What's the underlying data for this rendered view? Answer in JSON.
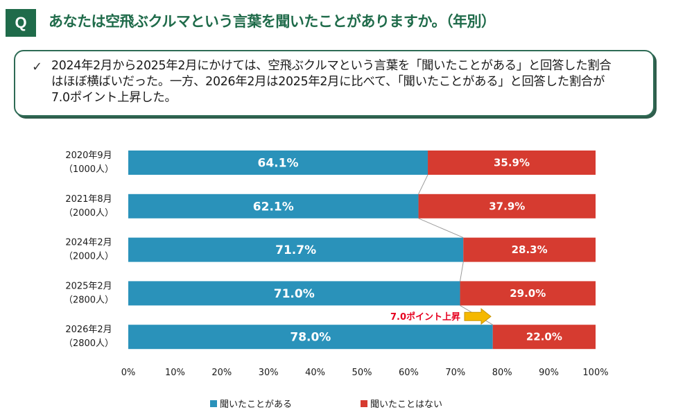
{
  "header": {
    "badge": "Q",
    "title": "あなたは空飛ぶクルマという言葉を聞いたことがありますか。（年別）"
  },
  "summary": {
    "check_icon": "check-icon",
    "line1": "2024年2月から2025年2月にかけては、空飛ぶクルマという言葉を「聞いたことがある」と回答した割合",
    "line2": "はほぼ横ばいだった。一方、2026年2月は2025年2月に比べて、「聞いたことがある」と回答した割合が",
    "line3": "7.0ポイント上昇した。"
  },
  "chart_data": {
    "type": "bar",
    "orientation": "horizontal",
    "stacked": true,
    "percent": true,
    "categories": [
      {
        "line1": "2020年9月",
        "line2": "（1000人）"
      },
      {
        "line1": "2021年8月",
        "line2": "（2000人）"
      },
      {
        "line1": "2024年2月",
        "line2": "（2000人）"
      },
      {
        "line1": "2025年2月",
        "line2": "（2800人）"
      },
      {
        "line1": "2026年2月",
        "line2": "（2800人）"
      }
    ],
    "series": [
      {
        "name": "聞いたことがある",
        "color": "#2a92ba",
        "values": [
          64.1,
          62.1,
          71.7,
          71.0,
          78.0
        ],
        "labels": [
          "64.1%",
          "62.1%",
          "71.7%",
          "71.0%",
          "78.0%"
        ]
      },
      {
        "name": "聞いたことはない",
        "color": "#d63b30",
        "values": [
          35.9,
          37.9,
          28.3,
          29.0,
          22.0
        ],
        "labels": [
          "35.9%",
          "37.9%",
          "28.3%",
          "29.0%",
          "22.0%"
        ]
      }
    ],
    "xlim": [
      0,
      100
    ],
    "xticks": [
      "0%",
      "10%",
      "20%",
      "30%",
      "40%",
      "50%",
      "60%",
      "70%",
      "80%",
      "90%",
      "100%"
    ],
    "series_lines": true,
    "legend_position": "bottom",
    "annotation": {
      "text": "7.0ポイント上昇",
      "color": "#e6001f",
      "arrow_color": "#f5b800",
      "category_index": 4
    }
  }
}
